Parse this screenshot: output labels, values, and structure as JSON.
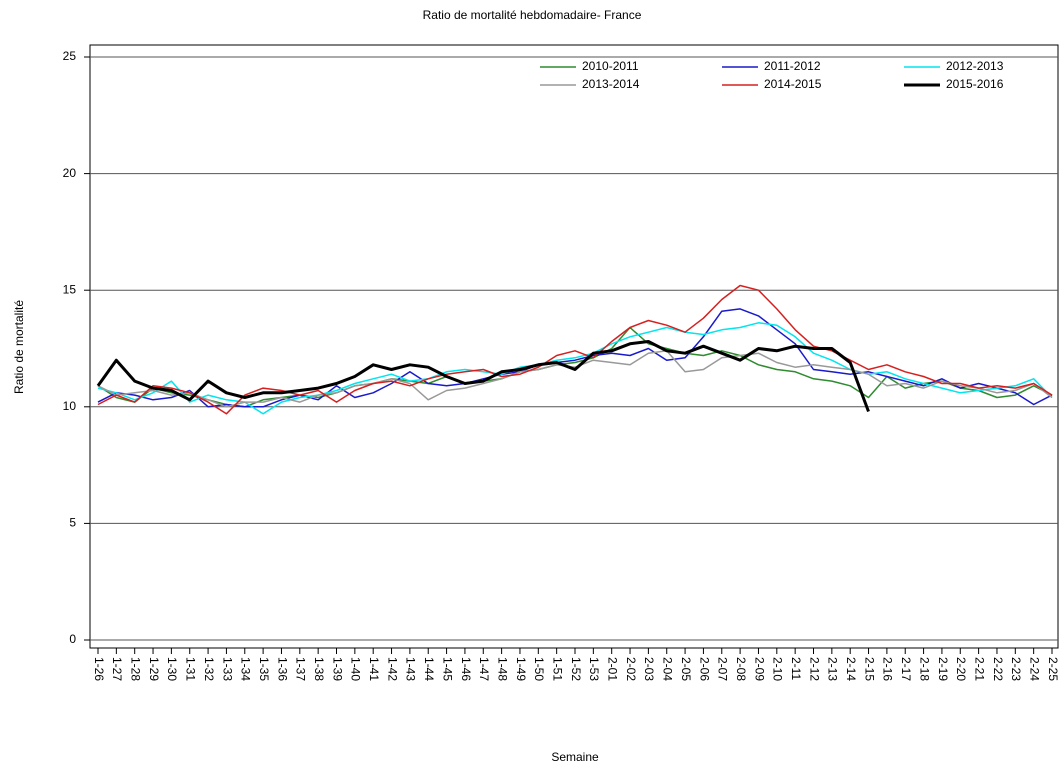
{
  "chart_data": {
    "type": "line",
    "title": "Ratio de mortalité hebdomadaire- France",
    "x_label": "Semaine",
    "y_label": "Ratio de mortalité",
    "categories": [
      "1-26",
      "1-27",
      "1-28",
      "1-29",
      "1-30",
      "1-31",
      "1-32",
      "1-33",
      "1-34",
      "1-35",
      "1-36",
      "1-37",
      "1-38",
      "1-39",
      "1-40",
      "1-41",
      "1-42",
      "1-43",
      "1-44",
      "1-45",
      "1-46",
      "1-47",
      "1-48",
      "1-49",
      "1-50",
      "1-51",
      "1-52",
      "1-53",
      "2-01",
      "2-02",
      "2-03",
      "2-04",
      "2-05",
      "2-06",
      "2-07",
      "2-08",
      "2-09",
      "2-10",
      "2-11",
      "2-12",
      "2-13",
      "2-14",
      "2-15",
      "2-16",
      "2-17",
      "2-18",
      "2-19",
      "2-20",
      "2-21",
      "2-22",
      "2-23",
      "2-24",
      "2-25"
    ],
    "ylim": [
      0,
      25
    ],
    "yticks": [
      0,
      5,
      10,
      15,
      20,
      25
    ],
    "grid": true,
    "legend": "upper right",
    "series": [
      {
        "name": "2010-2011",
        "color": "#2e8b2e",
        "line_width": 1.5,
        "values": [
          10.9,
          10.4,
          10.2,
          10.8,
          10.6,
          10.5,
          10.3,
          10.1,
          10.0,
          10.3,
          10.4,
          10.5,
          10.4,
          10.6,
          10.9,
          11.0,
          11.2,
          11.1,
          11.0,
          11.3,
          11.0,
          11.1,
          11.2,
          11.5,
          11.6,
          11.8,
          11.9,
          12.1,
          12.5,
          13.4,
          12.7,
          12.5,
          12.3,
          12.2,
          12.4,
          12.2,
          11.8,
          11.6,
          11.5,
          11.2,
          11.1,
          10.9,
          10.4,
          11.3,
          10.8,
          11.0,
          11.1,
          10.8,
          10.7,
          10.4,
          10.5,
          10.9,
          10.5
        ]
      },
      {
        "name": "2011-2012",
        "color": "#1a1acc",
        "line_width": 1.5,
        "values": [
          10.2,
          10.6,
          10.5,
          10.3,
          10.4,
          10.7,
          10.0,
          10.1,
          10.0,
          10.0,
          10.3,
          10.5,
          10.3,
          10.9,
          10.4,
          10.6,
          11.0,
          11.5,
          11.0,
          10.9,
          11.0,
          11.2,
          11.4,
          11.5,
          11.8,
          11.9,
          12.0,
          12.2,
          12.3,
          12.2,
          12.5,
          12.0,
          12.1,
          13.0,
          14.1,
          14.2,
          13.9,
          13.3,
          12.7,
          11.6,
          11.5,
          11.4,
          11.5,
          11.3,
          11.1,
          10.9,
          11.2,
          10.8,
          11.0,
          10.8,
          10.6,
          10.1,
          10.5
        ]
      },
      {
        "name": "2012-2013",
        "color": "#00e5ee",
        "line_width": 1.5,
        "values": [
          10.8,
          10.6,
          10.3,
          10.6,
          11.1,
          10.2,
          10.5,
          10.3,
          10.2,
          9.7,
          10.2,
          10.4,
          10.5,
          10.7,
          11.0,
          11.2,
          11.4,
          11.1,
          11.2,
          11.5,
          11.6,
          11.5,
          11.4,
          11.7,
          11.8,
          12.0,
          12.1,
          12.3,
          12.7,
          13.0,
          13.2,
          13.4,
          13.2,
          13.1,
          13.3,
          13.4,
          13.6,
          13.5,
          13.0,
          12.3,
          12.0,
          11.6,
          11.4,
          11.5,
          11.2,
          11.0,
          10.8,
          10.6,
          10.7,
          10.8,
          10.9,
          11.2,
          10.4
        ]
      },
      {
        "name": "2013-2014",
        "color": "#999999",
        "line_width": 1.5,
        "values": [
          10.9,
          10.5,
          10.6,
          10.7,
          10.5,
          10.6,
          10.3,
          10.0,
          10.2,
          10.2,
          10.4,
          10.2,
          10.5,
          10.6,
          10.9,
          11.0,
          11.2,
          11.0,
          10.3,
          10.7,
          10.8,
          11.0,
          11.2,
          11.5,
          11.6,
          11.8,
          11.7,
          12.0,
          11.9,
          11.8,
          12.3,
          12.4,
          11.5,
          11.6,
          12.1,
          12.2,
          12.3,
          11.9,
          11.7,
          11.8,
          11.7,
          11.6,
          11.4,
          10.9,
          11.0,
          10.8,
          11.1,
          10.9,
          10.8,
          10.6,
          10.7,
          11.0,
          10.4
        ]
      },
      {
        "name": "2014-2015",
        "color": "#d62020",
        "line_width": 1.5,
        "values": [
          10.1,
          10.5,
          10.2,
          10.9,
          10.8,
          10.6,
          10.2,
          9.7,
          10.5,
          10.8,
          10.7,
          10.5,
          10.7,
          10.2,
          10.7,
          11.0,
          11.1,
          10.9,
          11.2,
          11.4,
          11.5,
          11.6,
          11.3,
          11.4,
          11.7,
          12.2,
          12.4,
          12.1,
          12.8,
          13.4,
          13.7,
          13.5,
          13.2,
          13.8,
          14.6,
          15.2,
          15.0,
          14.2,
          13.3,
          12.6,
          12.4,
          12.0,
          11.6,
          11.8,
          11.5,
          11.3,
          11.0,
          11.0,
          10.8,
          10.9,
          10.8,
          11.0,
          10.5
        ]
      },
      {
        "name": "2015-2016",
        "color": "#000000",
        "line_width": 3,
        "values": [
          10.9,
          12.0,
          11.1,
          10.8,
          10.7,
          10.3,
          11.1,
          10.6,
          10.4,
          10.6,
          10.6,
          10.7,
          10.8,
          11.0,
          11.3,
          11.8,
          11.6,
          11.8,
          11.7,
          11.3,
          11.0,
          11.1,
          11.5,
          11.6,
          11.8,
          11.9,
          11.6,
          12.3,
          12.4,
          12.7,
          12.8,
          12.4,
          12.3,
          12.6,
          12.3,
          12.0,
          12.5,
          12.4,
          12.6,
          12.5,
          12.5,
          11.9,
          9.8,
          null,
          null,
          null,
          null,
          null,
          null,
          null,
          null,
          null,
          null
        ]
      }
    ]
  }
}
